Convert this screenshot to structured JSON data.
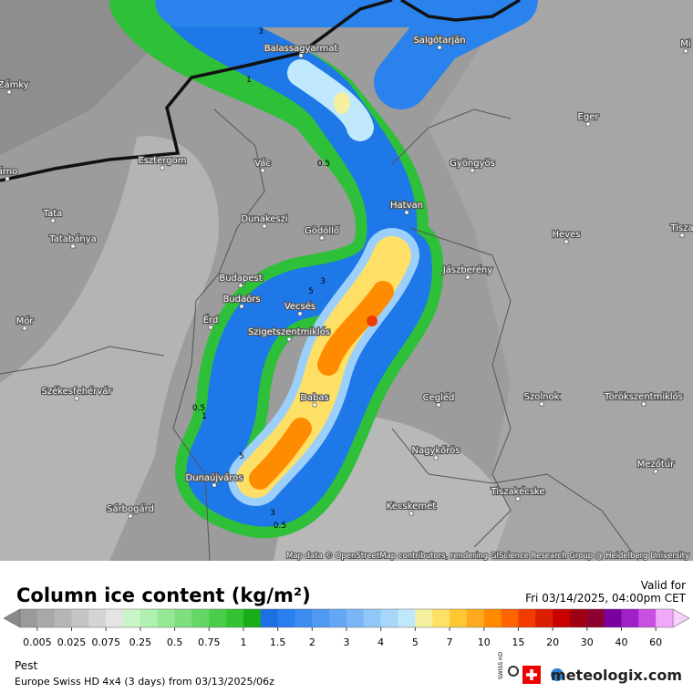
{
  "map": {
    "cities": [
      "Balassagyarmat",
      "Salgótarján",
      "Mi",
      "é Zámky",
      "Eger",
      "Esztergom",
      "Vác",
      "Gyöngyös",
      "árno",
      "Tata",
      "Hatvan",
      "Dunakeszi",
      "Gödöllő",
      "Heves",
      "Tisza",
      "Tatabánya",
      "Budapest",
      "Jászberény",
      "Budaörs",
      "Vecsés",
      "Mór",
      "Érd",
      "Szigetszentmiklós",
      "Székesfehérvár",
      "Dabas",
      "Cegléd",
      "Szolnok",
      "Törökszentmiklós",
      "Nagykőrös",
      "Dunaújváros",
      "Mezőtúr",
      "Tiszakécske",
      "Kecskemét",
      "Sárbogárd"
    ],
    "contour_labels": [
      "3",
      "1",
      "0.5",
      "3",
      "5",
      "0.5",
      "1",
      "5",
      "3",
      "0.5"
    ],
    "attribution": "Map data © OpenStreetMap contributors, rendering GIScience Research Group @ Heidelberg University"
  },
  "legend": {
    "title": "Column ice content (kg/m²)",
    "valid_label": "Valid for",
    "valid_time": "Fri 03/14/2025, 04:00pm CET",
    "colors": [
      "#9a9a9a",
      "#a8a8a8",
      "#b6b6b6",
      "#c4c4c4",
      "#d4d4d4",
      "#e4e4e4",
      "#c8f5c8",
      "#b0f0b0",
      "#96e896",
      "#7ddf7d",
      "#64d664",
      "#4bcc4b",
      "#32c232",
      "#1aad1a",
      "#1e6ee6",
      "#2a7ff0",
      "#3c8cf0",
      "#4f9af0",
      "#64a8f5",
      "#7ab6f5",
      "#90c6f8",
      "#a8d6fa",
      "#bfe8fc",
      "#f5f0a0",
      "#ffe066",
      "#ffc832",
      "#ffaa1e",
      "#ff8c00",
      "#ff6400",
      "#f03c00",
      "#dc1e00",
      "#c80000",
      "#a00014",
      "#8c0032",
      "#7a00a0",
      "#a020c8",
      "#c850e0",
      "#f0a8f8"
    ],
    "labels": [
      "0.005",
      "0.025",
      "0.075",
      "0.25",
      "0.5",
      "0.75",
      "1",
      "1.5",
      "2",
      "3",
      "4",
      "5",
      "7",
      "10",
      "15",
      "20",
      "30",
      "40",
      "60"
    ]
  },
  "footer": {
    "region": "Pest",
    "model": "Europe Swiss HD 4x4 (3 days) from 03/13/2025/06z",
    "brand": "meteologix.com",
    "badge": "SWISS HD"
  }
}
